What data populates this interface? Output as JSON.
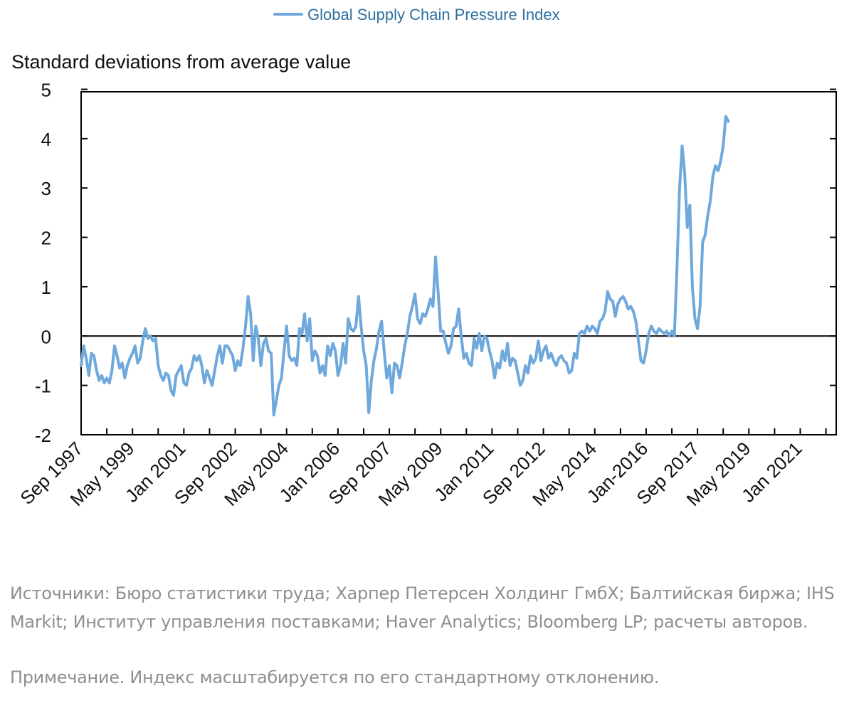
{
  "chart_data": {
    "type": "line",
    "legend": {
      "placement": "top-center"
    },
    "ylabel": "Standard deviations from average value",
    "ylim": [
      -2,
      5
    ],
    "yticks": [
      5,
      4,
      3,
      2,
      1,
      0,
      -1,
      -2
    ],
    "ytick_labels": [
      "5",
      "4",
      "3",
      "2",
      "1",
      "0",
      "-1",
      "-2"
    ],
    "x_range": [
      "1997-09",
      "2022-03"
    ],
    "xtick_labels": [
      "Sep 1997",
      "May 1999",
      "Jan 2001",
      "Sep 2002",
      "May 2004",
      "Jan 2006",
      "Sep 2007",
      "May 2009",
      "Jan 2011",
      "Sep 2012",
      "May 2014",
      "Jan-2016",
      "Sep 2017",
      "May 2019",
      "Jan 2021"
    ],
    "zero_line": true,
    "grid": false,
    "colors": {
      "series": "#6fa8dc",
      "zero_line": "#000000",
      "axis": "#000000",
      "legend_text": "#2e6f9e"
    },
    "series": [
      {
        "name": "Global Supply Chain Pressure Index",
        "points": [
          [
            "1997-09",
            -0.6
          ],
          [
            "1997-10",
            -0.2
          ],
          [
            "1997-11",
            -0.45
          ],
          [
            "1997-12",
            -0.8
          ],
          [
            "1998-01",
            -0.35
          ],
          [
            "1998-02",
            -0.4
          ],
          [
            "1998-03",
            -0.7
          ],
          [
            "1998-04",
            -0.9
          ],
          [
            "1998-05",
            -0.8
          ],
          [
            "1998-06",
            -0.95
          ],
          [
            "1998-07",
            -0.85
          ],
          [
            "1998-08",
            -0.95
          ],
          [
            "1998-09",
            -0.7
          ],
          [
            "1998-10",
            -0.2
          ],
          [
            "1998-11",
            -0.4
          ],
          [
            "1998-12",
            -0.65
          ],
          [
            "1999-01",
            -0.55
          ],
          [
            "1999-02",
            -0.85
          ],
          [
            "1999-03",
            -0.6
          ],
          [
            "1999-04",
            -0.45
          ],
          [
            "1999-05",
            -0.35
          ],
          [
            "1999-06",
            -0.2
          ],
          [
            "1999-07",
            -0.55
          ],
          [
            "1999-08",
            -0.45
          ],
          [
            "1999-09",
            -0.1
          ],
          [
            "1999-10",
            0.15
          ],
          [
            "1999-11",
            -0.05
          ],
          [
            "1999-12",
            0.0
          ],
          [
            "2000-01",
            -0.1
          ],
          [
            "2000-02",
            -0.05
          ],
          [
            "2000-03",
            -0.6
          ],
          [
            "2000-04",
            -0.8
          ],
          [
            "2000-05",
            -0.9
          ],
          [
            "2000-06",
            -0.75
          ],
          [
            "2000-07",
            -0.8
          ],
          [
            "2000-08",
            -1.1
          ],
          [
            "2000-09",
            -1.2
          ],
          [
            "2000-10",
            -0.8
          ],
          [
            "2000-11",
            -0.7
          ],
          [
            "2000-12",
            -0.6
          ],
          [
            "2001-01",
            -0.95
          ],
          [
            "2001-02",
            -1.0
          ],
          [
            "2001-03",
            -0.75
          ],
          [
            "2001-04",
            -0.65
          ],
          [
            "2001-05",
            -0.4
          ],
          [
            "2001-06",
            -0.5
          ],
          [
            "2001-07",
            -0.4
          ],
          [
            "2001-08",
            -0.6
          ],
          [
            "2001-09",
            -0.95
          ],
          [
            "2001-10",
            -0.7
          ],
          [
            "2001-11",
            -0.85
          ],
          [
            "2001-12",
            -1.0
          ],
          [
            "2002-01",
            -0.7
          ],
          [
            "2002-02",
            -0.4
          ],
          [
            "2002-03",
            -0.2
          ],
          [
            "2002-04",
            -0.55
          ],
          [
            "2002-05",
            -0.2
          ],
          [
            "2002-06",
            -0.2
          ],
          [
            "2002-07",
            -0.3
          ],
          [
            "2002-08",
            -0.4
          ],
          [
            "2002-09",
            -0.7
          ],
          [
            "2002-10",
            -0.5
          ],
          [
            "2002-11",
            -0.6
          ],
          [
            "2002-12",
            -0.25
          ],
          [
            "2003-01",
            0.2
          ],
          [
            "2003-02",
            0.8
          ],
          [
            "2003-03",
            0.45
          ],
          [
            "2003-04",
            -0.5
          ],
          [
            "2003-05",
            0.2
          ],
          [
            "2003-06",
            -0.05
          ],
          [
            "2003-07",
            -0.6
          ],
          [
            "2003-08",
            -0.15
          ],
          [
            "2003-09",
            -0.05
          ],
          [
            "2003-10",
            -0.3
          ],
          [
            "2003-11",
            -0.35
          ],
          [
            "2003-12",
            -1.6
          ],
          [
            "2004-01",
            -1.3
          ],
          [
            "2004-02",
            -1.0
          ],
          [
            "2004-03",
            -0.85
          ],
          [
            "2004-04",
            -0.3
          ],
          [
            "2004-05",
            0.2
          ],
          [
            "2004-06",
            -0.4
          ],
          [
            "2004-07",
            -0.5
          ],
          [
            "2004-08",
            -0.45
          ],
          [
            "2004-09",
            -0.6
          ],
          [
            "2004-10",
            0.15
          ],
          [
            "2004-11",
            0.05
          ],
          [
            "2004-12",
            0.45
          ],
          [
            "2005-01",
            -0.1
          ],
          [
            "2005-02",
            0.35
          ],
          [
            "2005-03",
            -0.5
          ],
          [
            "2005-04",
            -0.3
          ],
          [
            "2005-05",
            -0.4
          ],
          [
            "2005-06",
            -0.75
          ],
          [
            "2005-07",
            -0.6
          ],
          [
            "2005-08",
            -0.8
          ],
          [
            "2005-09",
            -0.2
          ],
          [
            "2005-10",
            -0.4
          ],
          [
            "2005-11",
            -0.15
          ],
          [
            "2005-12",
            -0.3
          ],
          [
            "2006-01",
            -0.8
          ],
          [
            "2006-02",
            -0.6
          ],
          [
            "2006-03",
            -0.15
          ],
          [
            "2006-04",
            -0.55
          ],
          [
            "2006-05",
            0.35
          ],
          [
            "2006-06",
            0.15
          ],
          [
            "2006-07",
            0.1
          ],
          [
            "2006-08",
            0.2
          ],
          [
            "2006-09",
            0.8
          ],
          [
            "2006-10",
            0.2
          ],
          [
            "2006-11",
            -0.3
          ],
          [
            "2006-12",
            -0.6
          ],
          [
            "2007-01",
            -1.55
          ],
          [
            "2007-02",
            -0.9
          ],
          [
            "2007-03",
            -0.5
          ],
          [
            "2007-04",
            -0.25
          ],
          [
            "2007-05",
            0.1
          ],
          [
            "2007-06",
            0.3
          ],
          [
            "2007-07",
            -0.3
          ],
          [
            "2007-08",
            -0.85
          ],
          [
            "2007-09",
            -0.6
          ],
          [
            "2007-10",
            -1.15
          ],
          [
            "2007-11",
            -0.55
          ],
          [
            "2007-12",
            -0.6
          ],
          [
            "2008-01",
            -0.85
          ],
          [
            "2008-02",
            -0.55
          ],
          [
            "2008-03",
            -0.2
          ],
          [
            "2008-04",
            0.05
          ],
          [
            "2008-05",
            0.4
          ],
          [
            "2008-06",
            0.6
          ],
          [
            "2008-07",
            0.85
          ],
          [
            "2008-08",
            0.35
          ],
          [
            "2008-09",
            0.25
          ],
          [
            "2008-10",
            0.45
          ],
          [
            "2008-11",
            0.4
          ],
          [
            "2008-12",
            0.55
          ],
          [
            "2009-01",
            0.75
          ],
          [
            "2009-02",
            0.6
          ],
          [
            "2009-03",
            1.6
          ],
          [
            "2009-04",
            0.9
          ],
          [
            "2009-05",
            0.1
          ],
          [
            "2009-06",
            0.1
          ],
          [
            "2009-07",
            -0.15
          ],
          [
            "2009-08",
            -0.35
          ],
          [
            "2009-09",
            -0.2
          ],
          [
            "2009-10",
            0.15
          ],
          [
            "2009-11",
            0.2
          ],
          [
            "2009-12",
            0.55
          ],
          [
            "2010-01",
            0.0
          ],
          [
            "2010-02",
            -0.45
          ],
          [
            "2010-03",
            -0.35
          ],
          [
            "2010-04",
            -0.55
          ],
          [
            "2010-05",
            -0.6
          ],
          [
            "2010-06",
            -0.05
          ],
          [
            "2010-07",
            -0.25
          ],
          [
            "2010-08",
            0.05
          ],
          [
            "2010-09",
            -0.3
          ],
          [
            "2010-10",
            0.0
          ],
          [
            "2010-11",
            -0.05
          ],
          [
            "2010-12",
            -0.3
          ],
          [
            "2011-01",
            -0.5
          ],
          [
            "2011-02",
            -0.85
          ],
          [
            "2011-03",
            -0.55
          ],
          [
            "2011-04",
            -0.65
          ],
          [
            "2011-05",
            -0.3
          ],
          [
            "2011-06",
            -0.5
          ],
          [
            "2011-07",
            -0.15
          ],
          [
            "2011-08",
            -0.6
          ],
          [
            "2011-09",
            -0.45
          ],
          [
            "2011-10",
            -0.5
          ],
          [
            "2011-11",
            -0.75
          ],
          [
            "2011-12",
            -1.0
          ],
          [
            "2012-01",
            -0.9
          ],
          [
            "2012-02",
            -0.6
          ],
          [
            "2012-03",
            -0.75
          ],
          [
            "2012-04",
            -0.4
          ],
          [
            "2012-05",
            -0.55
          ],
          [
            "2012-06",
            -0.45
          ],
          [
            "2012-07",
            -0.1
          ],
          [
            "2012-08",
            -0.5
          ],
          [
            "2012-09",
            -0.3
          ],
          [
            "2012-10",
            -0.2
          ],
          [
            "2012-11",
            -0.45
          ],
          [
            "2012-12",
            -0.35
          ],
          [
            "2013-01",
            -0.5
          ],
          [
            "2013-02",
            -0.6
          ],
          [
            "2013-03",
            -0.45
          ],
          [
            "2013-04",
            -0.4
          ],
          [
            "2013-05",
            -0.5
          ],
          [
            "2013-06",
            -0.55
          ],
          [
            "2013-07",
            -0.75
          ],
          [
            "2013-08",
            -0.7
          ],
          [
            "2013-09",
            -0.35
          ],
          [
            "2013-10",
            -0.45
          ],
          [
            "2013-11",
            0.05
          ],
          [
            "2013-12",
            0.1
          ],
          [
            "2014-01",
            0.05
          ],
          [
            "2014-02",
            0.2
          ],
          [
            "2014-03",
            0.1
          ],
          [
            "2014-04",
            0.2
          ],
          [
            "2014-05",
            0.15
          ],
          [
            "2014-06",
            0.05
          ],
          [
            "2014-07",
            0.3
          ],
          [
            "2014-08",
            0.35
          ],
          [
            "2014-09",
            0.5
          ],
          [
            "2014-10",
            0.9
          ],
          [
            "2014-11",
            0.75
          ],
          [
            "2014-12",
            0.7
          ],
          [
            "2015-01",
            0.4
          ],
          [
            "2015-02",
            0.65
          ],
          [
            "2015-03",
            0.75
          ],
          [
            "2015-04",
            0.8
          ],
          [
            "2015-05",
            0.7
          ],
          [
            "2015-06",
            0.55
          ],
          [
            "2015-07",
            0.6
          ],
          [
            "2015-08",
            0.5
          ],
          [
            "2015-09",
            0.3
          ],
          [
            "2015-10",
            -0.1
          ],
          [
            "2015-11",
            -0.5
          ],
          [
            "2015-12",
            -0.55
          ],
          [
            "2016-01",
            -0.3
          ],
          [
            "2016-02",
            0.05
          ],
          [
            "2016-03",
            0.2
          ],
          [
            "2016-04",
            0.1
          ],
          [
            "2016-05",
            0.05
          ],
          [
            "2016-06",
            0.15
          ],
          [
            "2016-07",
            0.1
          ],
          [
            "2016-08",
            0.05
          ],
          [
            "2016-09",
            0.1
          ],
          [
            "2016-10",
            0.0
          ],
          [
            "2016-11",
            0.1
          ],
          [
            "2016-12",
            0.0
          ],
          [
            "2017-01",
            1.4
          ],
          [
            "2017-02",
            3.0
          ],
          [
            "2017-03",
            3.85
          ],
          [
            "2017-04",
            3.3
          ],
          [
            "2017-05",
            2.2
          ],
          [
            "2017-06",
            2.65
          ],
          [
            "2017-07",
            1.0
          ],
          [
            "2017-08",
            0.35
          ],
          [
            "2017-09",
            0.15
          ],
          [
            "2017-10",
            0.6
          ],
          [
            "2017-11",
            1.9
          ],
          [
            "2017-12",
            2.05
          ],
          [
            "2018-01",
            2.45
          ],
          [
            "2018-02",
            2.75
          ],
          [
            "2018-03",
            3.25
          ],
          [
            "2018-04",
            3.45
          ],
          [
            "2018-05",
            3.35
          ],
          [
            "2018-06",
            3.55
          ],
          [
            "2018-07",
            3.85
          ],
          [
            "2018-08",
            4.45
          ],
          [
            "2018-09",
            4.35
          ]
        ]
      }
    ]
  },
  "footnotes": {
    "sources": "Источники: Бюро статистики труда; Харпер Петерсен Холдинг ГмбХ; Балтийская биржа; IHS Markit; Институт управления поставками; Haver Analytics; Bloomberg LP; расчеты авторов.",
    "note": "Примечание. Индекс масштабируется по его стандартному отклонению."
  }
}
